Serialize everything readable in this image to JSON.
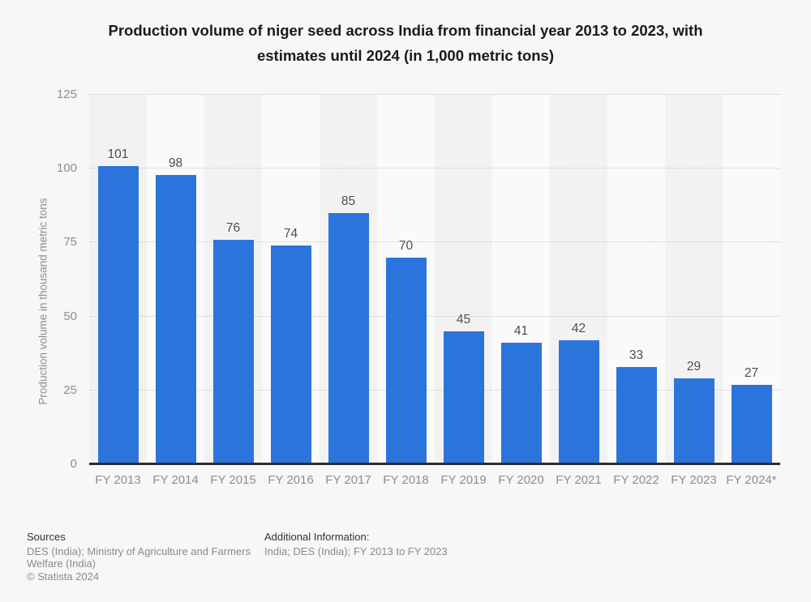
{
  "title": {
    "line1": "Production volume of niger seed across India from financial year 2013 to 2023, with",
    "line2": "estimates until 2024 (in 1,000 metric tons)"
  },
  "chart_data": {
    "type": "bar",
    "title": "Production volume of niger seed across India from financial year 2013 to 2023, with estimates until 2024 (in 1,000 metric tons)",
    "categories": [
      "FY 2013",
      "FY 2014",
      "FY 2015",
      "FY 2016",
      "FY 2017",
      "FY 2018",
      "FY 2019",
      "FY 2020",
      "FY 2021",
      "FY 2022",
      "FY 2023",
      "FY 2024*"
    ],
    "values": [
      101,
      98,
      76,
      74,
      85,
      70,
      45,
      41,
      42,
      33,
      29,
      27
    ],
    "xlabel": "",
    "ylabel": "Production volume in thousand metric tons",
    "ylim": [
      0,
      125
    ],
    "yticks": [
      0,
      25,
      50,
      75,
      100,
      125
    ],
    "grid": "horizontal-dotted",
    "legend": "none",
    "note": "FY 2024 value is an estimate (asterisk)"
  },
  "footer": {
    "sources_label": "Sources",
    "sources_text": "DES (India); Ministry of Agriculture and Farmers Welfare (India)",
    "copyright": "© Statista 2024",
    "additional_label": "Additional Information:",
    "additional_text": "India; DES (India); FY 2013 to FY 2023"
  },
  "colors": {
    "bar": "#2b74dc",
    "background": "#f7f7f7",
    "band_dark": "#f2f2f3",
    "band_light": "#fafafa",
    "grid": "#c9c9c9",
    "axis_line": "#2d2d2d",
    "text_title": "#1a1a1a",
    "text_value": "#4a4a4a",
    "text_gray": "#8d8d8d",
    "text_gray_light": "#8a8a8a",
    "text_dark": "#333333"
  }
}
